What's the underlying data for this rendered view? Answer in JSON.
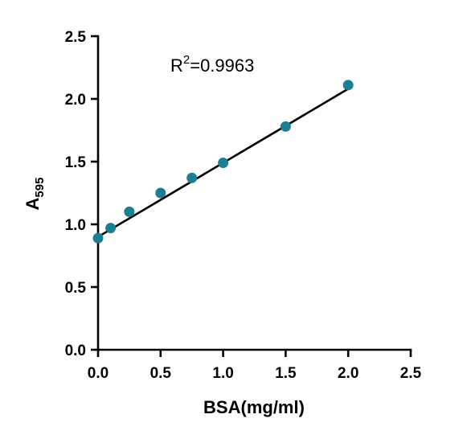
{
  "chart_data": {
    "type": "scatter",
    "title": "",
    "xlabel": "BSA(mg/ml)",
    "ylabel": {
      "main": "A",
      "subscript": "595"
    },
    "xlim": [
      0,
      2.5
    ],
    "ylim": [
      0,
      2.5
    ],
    "xticks": [
      "0.0",
      "0.5",
      "1.0",
      "1.5",
      "2.0",
      "2.5"
    ],
    "yticks": [
      "0.0",
      "0.5",
      "1.0",
      "1.5",
      "2.0",
      "2.5"
    ],
    "grid": false,
    "legend": "none",
    "series": [
      {
        "x": [
          0,
          0.1,
          0.25,
          0.5,
          0.75,
          1.0,
          1.5,
          2.0
        ],
        "y": [
          0.89,
          0.97,
          1.1,
          1.25,
          1.37,
          1.49,
          1.78,
          2.11
        ],
        "color": "#1a7f93"
      }
    ],
    "fit_line": {
      "x": [
        0,
        2.0
      ],
      "y": [
        0.9,
        2.08
      ],
      "color": "#000000"
    },
    "annotation": {
      "text_main": "R",
      "text_sup": "2",
      "text_rest": "=0.9963"
    }
  }
}
